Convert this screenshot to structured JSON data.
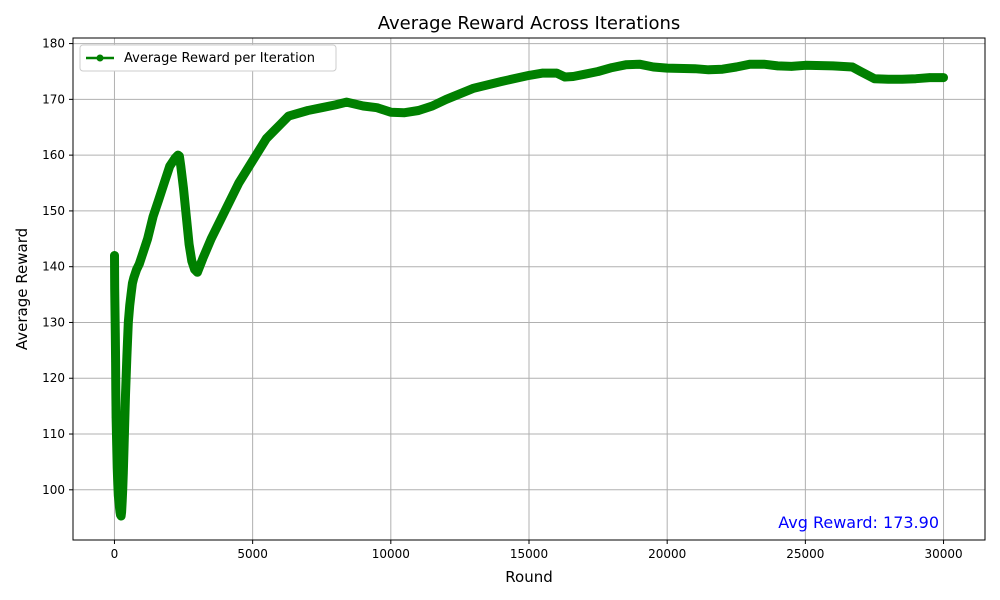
{
  "chart_data": {
    "type": "line",
    "title": "Average Reward Across Iterations",
    "xlabel": "Round",
    "ylabel": "Average Reward",
    "xlim": [
      -1500,
      31500
    ],
    "ylim": [
      91,
      181
    ],
    "xticks": [
      0,
      5000,
      10000,
      15000,
      20000,
      25000,
      30000
    ],
    "yticks": [
      100,
      110,
      120,
      130,
      140,
      150,
      160,
      170,
      180
    ],
    "grid": true,
    "legend": {
      "placement": "top-left",
      "entries": [
        "Average Reward per Iteration"
      ]
    },
    "annotation": {
      "text": "Avg Reward: 173.90",
      "placement": "bottom-right",
      "color": "#0000ff"
    },
    "series": [
      {
        "name": "Average Reward per Iteration",
        "color": "#008000",
        "marker": "circle",
        "x": [
          0,
          10,
          20,
          30,
          40,
          50,
          60,
          80,
          100,
          120,
          140,
          160,
          180,
          200,
          220,
          240,
          260,
          280,
          300,
          320,
          350,
          400,
          450,
          500,
          550,
          600,
          650,
          700,
          800,
          900,
          1000,
          1200,
          1400,
          1600,
          1800,
          2000,
          2200,
          2300,
          2350,
          2400,
          2500,
          2600,
          2700,
          2800,
          2900,
          3000,
          3200,
          3500,
          4000,
          4500,
          5000,
          5500,
          6000,
          6300,
          7000,
          7500,
          8000,
          8400,
          9000,
          9500,
          10000,
          10500,
          11000,
          11500,
          12000,
          12500,
          13000,
          14000,
          15000,
          15500,
          16000,
          16300,
          16600,
          17000,
          17500,
          18000,
          18500,
          19000,
          19500,
          20000,
          21000,
          21500,
          22000,
          22500,
          23000,
          23500,
          24000,
          24500,
          25000,
          26000,
          26700,
          27000,
          27500,
          28000,
          28500,
          29000,
          29500,
          30000
        ],
        "y": [
          142,
          136,
          132,
          128,
          123,
          118,
          113,
          108,
          104,
          101,
          99,
          98,
          97,
          96,
          95.5,
          95.3,
          96,
          98,
          100,
          103,
          108,
          117,
          124,
          130,
          133,
          135,
          137,
          138,
          139.5,
          140.5,
          142,
          145,
          149,
          152,
          155,
          158,
          159.5,
          160,
          159.8,
          158,
          154,
          149,
          144,
          141,
          139.5,
          139,
          141.5,
          145,
          150,
          155,
          159,
          163,
          165.5,
          167,
          168,
          168.5,
          169,
          169.5,
          168.8,
          168.5,
          167.7,
          167.6,
          168,
          168.8,
          170,
          171,
          172,
          173.2,
          174.3,
          174.7,
          174.7,
          174,
          174.1,
          174.5,
          175,
          175.7,
          176.2,
          176.3,
          175.8,
          175.6,
          175.5,
          175.3,
          175.4,
          175.8,
          176.3,
          176.3,
          176,
          175.9,
          176.1,
          176,
          175.8,
          175,
          173.7,
          173.6,
          173.6,
          173.7,
          173.9,
          173.9
        ]
      }
    ]
  }
}
